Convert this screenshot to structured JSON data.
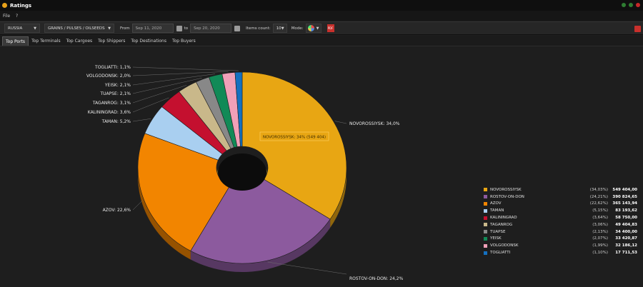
{
  "window": {
    "title": "Ratings"
  },
  "menu": {
    "file": "File",
    "help": "?"
  },
  "toolbar": {
    "country": "RUSSIA",
    "commodity": "GRAINS / PULSES / OILSEEDS",
    "from_label": "From",
    "from_date": "Sep 11, 2020",
    "to_label": "to",
    "to_date": "Sep 20, 2020",
    "items_count_label": "Items count:",
    "items_count": "10",
    "mode_label": "Mode:"
  },
  "tabs": [
    "Top Ports",
    "Top Terminals",
    "Top Cargoes",
    "Top Shippers",
    "Top Destinations",
    "Top Buyers"
  ],
  "tooltip": "NOVOROSSIYSK: 34% (549 404)",
  "chart_data": {
    "type": "pie",
    "title": "",
    "slices": [
      {
        "name": "NOVOROSSIYSK",
        "label": "NOVOROSSIYSK: 34,0%",
        "pct_text": "(34,03%)",
        "value_text": "549 404,00",
        "value": 549404.0,
        "percent": 34.03,
        "color": "#e8a613"
      },
      {
        "name": "ROSTOV-ON-DON",
        "label": "ROSTOV-ON-DON: 24,2%",
        "pct_text": "(24,21%)",
        "value_text": "390 824,65",
        "value": 390824.65,
        "percent": 24.21,
        "color": "#8c5a9e"
      },
      {
        "name": "AZOV",
        "label": "AZOV: 22,6%",
        "pct_text": "(22,62%)",
        "value_text": "365 143,94",
        "value": 365143.94,
        "percent": 22.62,
        "color": "#f28500"
      },
      {
        "name": "TAMAN",
        "label": "TAMAN: 5,2%",
        "pct_text": "(5,15%)",
        "value_text": "83 193,62",
        "value": 83193.62,
        "percent": 5.15,
        "color": "#a9cff0"
      },
      {
        "name": "KALININGRAD",
        "label": "KALININGRAD: 3,6%",
        "pct_text": "(3,64%)",
        "value_text": "58 750,00",
        "value": 58750.0,
        "percent": 3.64,
        "color": "#c4102f"
      },
      {
        "name": "TAGANROG",
        "label": "TAGANROG: 3,1%",
        "pct_text": "(3,06%)",
        "value_text": "49 404,83",
        "value": 49404.83,
        "percent": 3.06,
        "color": "#c9b88a"
      },
      {
        "name": "TUAPSE",
        "label": "TUAPSE: 2,1%",
        "pct_text": "(2,13%)",
        "value_text": "34 400,00",
        "value": 34400.0,
        "percent": 2.13,
        "color": "#888888"
      },
      {
        "name": "YEISK",
        "label": "YEISK: 2,1%",
        "pct_text": "(2,07%)",
        "value_text": "33 420,87",
        "value": 33420.87,
        "percent": 2.07,
        "color": "#118a57"
      },
      {
        "name": "VOLGODONSK",
        "label": "VOLGODONSK: 2,0%",
        "pct_text": "(1,99%)",
        "value_text": "32 186,12",
        "value": 32186.12,
        "percent": 1.99,
        "color": "#f0a0b8"
      },
      {
        "name": "TOGLIATTI",
        "label": "TOGLIATTI: 1,1%",
        "pct_text": "(1,10%)",
        "value_text": "17 711,53",
        "value": 17711.53,
        "percent": 1.1,
        "color": "#1470c0"
      }
    ]
  }
}
